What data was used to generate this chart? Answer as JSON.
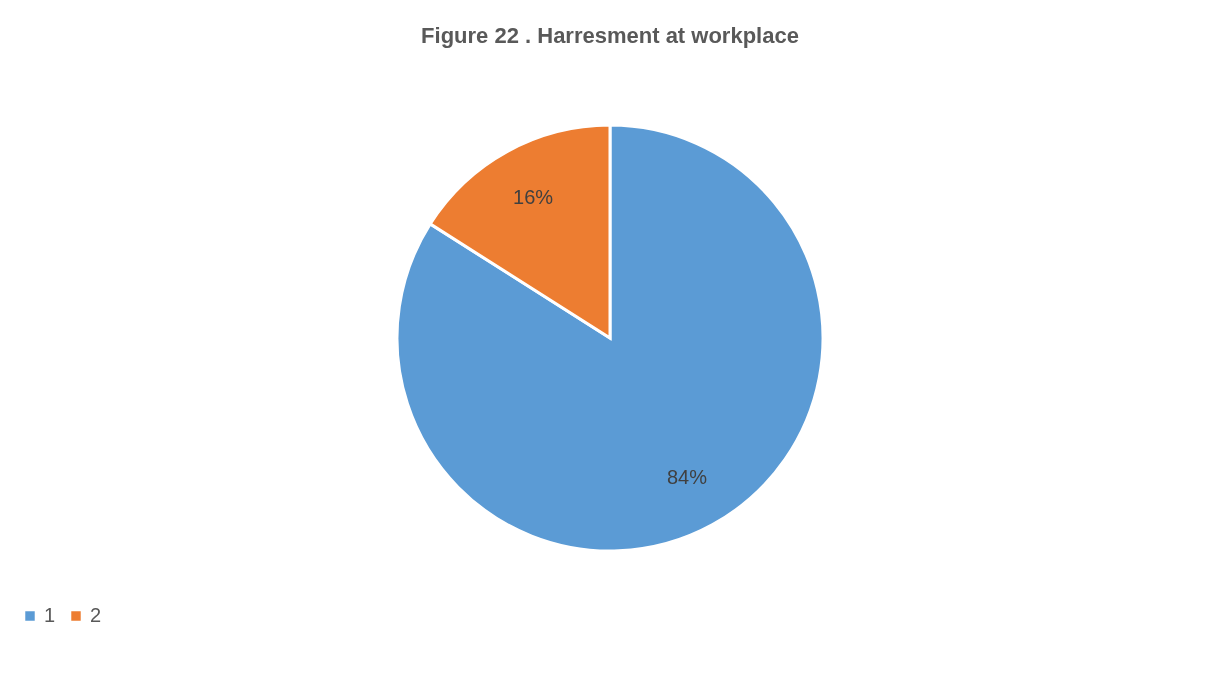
{
  "chart_data": {
    "type": "pie",
    "title": "Figure 22 . Harresment at workplace",
    "categories": [
      "1",
      "2"
    ],
    "values": [
      84,
      16
    ],
    "colors": [
      "#5b9bd5",
      "#ed7d31"
    ],
    "value_labels": [
      "84%",
      "16%"
    ],
    "legend": "bottom"
  }
}
